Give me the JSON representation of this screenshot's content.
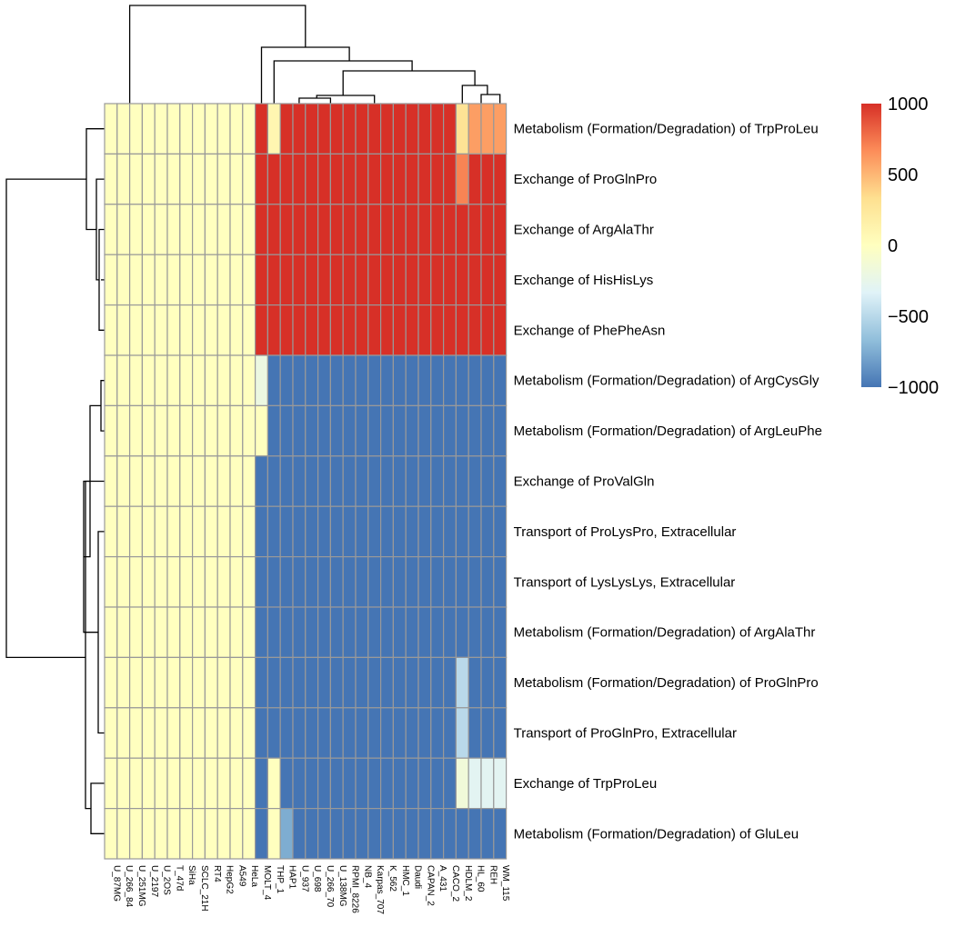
{
  "chart_data": {
    "type": "heatmap",
    "title": "",
    "row_labels": [
      "Metabolism (Formation/Degradation) of TrpProLeu",
      "Exchange of ProGlnPro",
      "Exchange of ArgAlaThr",
      "Exchange of HisHisLys",
      "Exchange of PhePheAsn",
      "Metabolism (Formation/Degradation) of ArgCysGly",
      "Metabolism (Formation/Degradation) of ArgLeuPhe",
      "Exchange of ProValGln",
      "Transport of ProLysPro, Extracellular",
      "Transport of LysLysLys, Extracellular",
      "Metabolism (Formation/Degradation) of ArgAlaThr",
      "Metabolism (Formation/Degradation) of ProGlnPro",
      "Transport of ProGlnPro, Extracellular",
      "Exchange of TrpProLeu",
      "Metabolism (Formation/Degradation) of GluLeu"
    ],
    "col_labels": [
      "U_87MG",
      "U_266_84",
      "U_251MG",
      "U_2197",
      "U_2OS",
      "T_47d",
      "SiHa",
      "SCLC_21H",
      "RT4",
      "HepG2",
      "A549",
      "HeLa",
      "MOLT_4",
      "THP_1",
      "HAP1",
      "U_937",
      "U_698",
      "U_266_70",
      "U_138MG",
      "RPMI_8226",
      "NB_4",
      "Karpas_707",
      "K_562",
      "HMC_1",
      "Daudi",
      "CAPAN_2",
      "A_431",
      "CACO_2",
      "HDLM_2",
      "HL_60",
      "REH",
      "WM_115"
    ],
    "values": [
      [
        0,
        0,
        0,
        0,
        0,
        0,
        0,
        0,
        0,
        0,
        0,
        0,
        1000,
        100,
        1000,
        1000,
        1000,
        1000,
        1000,
        1000,
        1000,
        1000,
        1000,
        1000,
        1000,
        1000,
        1000,
        1000,
        300,
        600,
        600,
        600
      ],
      [
        0,
        0,
        0,
        0,
        0,
        0,
        0,
        0,
        0,
        0,
        0,
        0,
        1000,
        1000,
        1000,
        1000,
        1000,
        1000,
        1000,
        1000,
        1000,
        1000,
        1000,
        1000,
        1000,
        1000,
        1000,
        1000,
        700,
        1000,
        1000,
        1000
      ],
      [
        0,
        0,
        0,
        0,
        0,
        0,
        0,
        0,
        0,
        0,
        0,
        0,
        1000,
        1000,
        1000,
        1000,
        1000,
        1000,
        1000,
        1000,
        1000,
        1000,
        1000,
        1000,
        1000,
        1000,
        1000,
        1000,
        1000,
        1000,
        1000,
        1000
      ],
      [
        0,
        0,
        0,
        0,
        0,
        0,
        0,
        0,
        0,
        0,
        0,
        0,
        1000,
        1000,
        1000,
        1000,
        1000,
        1000,
        1000,
        1000,
        1000,
        1000,
        1000,
        1000,
        1000,
        1000,
        1000,
        1000,
        1000,
        1000,
        1000,
        1000
      ],
      [
        0,
        0,
        0,
        0,
        0,
        0,
        0,
        0,
        0,
        0,
        0,
        0,
        1000,
        1000,
        1000,
        1000,
        1000,
        1000,
        1000,
        1000,
        1000,
        1000,
        1000,
        1000,
        1000,
        1000,
        1000,
        1000,
        1000,
        1000,
        1000,
        1000
      ],
      [
        0,
        0,
        0,
        0,
        0,
        0,
        0,
        0,
        0,
        0,
        0,
        0,
        -200,
        -1000,
        -1000,
        -1000,
        -1000,
        -1000,
        -1000,
        -1000,
        -1000,
        -1000,
        -1000,
        -1000,
        -1000,
        -1000,
        -1000,
        -1000,
        -1000,
        -1000,
        -1000,
        -1000
      ],
      [
        0,
        0,
        0,
        0,
        0,
        0,
        0,
        0,
        0,
        0,
        0,
        0,
        0,
        -1000,
        -1000,
        -1000,
        -1000,
        -1000,
        -1000,
        -1000,
        -1000,
        -1000,
        -1000,
        -1000,
        -1000,
        -1000,
        -1000,
        -1000,
        -1000,
        -1000,
        -1000,
        -1000
      ],
      [
        0,
        0,
        0,
        0,
        0,
        0,
        0,
        0,
        0,
        0,
        0,
        0,
        -1000,
        -1000,
        -1000,
        -1000,
        -1000,
        -1000,
        -1000,
        -1000,
        -1000,
        -1000,
        -1000,
        -1000,
        -1000,
        -1000,
        -1000,
        -1000,
        -1000,
        -1000,
        -1000,
        -1000
      ],
      [
        0,
        0,
        0,
        0,
        0,
        0,
        0,
        0,
        0,
        0,
        0,
        0,
        -1000,
        -1000,
        -1000,
        -1000,
        -1000,
        -1000,
        -1000,
        -1000,
        -1000,
        -1000,
        -1000,
        -1000,
        -1000,
        -1000,
        -1000,
        -1000,
        -1000,
        -1000,
        -1000,
        -1000
      ],
      [
        0,
        0,
        0,
        0,
        0,
        0,
        0,
        0,
        0,
        0,
        0,
        0,
        -1000,
        -1000,
        -1000,
        -1000,
        -1000,
        -1000,
        -1000,
        -1000,
        -1000,
        -1000,
        -1000,
        -1000,
        -1000,
        -1000,
        -1000,
        -1000,
        -1000,
        -1000,
        -1000,
        -1000
      ],
      [
        0,
        0,
        0,
        0,
        0,
        0,
        0,
        0,
        0,
        0,
        0,
        0,
        -1000,
        -1000,
        -1000,
        -1000,
        -1000,
        -1000,
        -1000,
        -1000,
        -1000,
        -1000,
        -1000,
        -1000,
        -1000,
        -1000,
        -1000,
        -1000,
        -1000,
        -1000,
        -1000,
        -1000
      ],
      [
        0,
        0,
        0,
        0,
        0,
        0,
        0,
        0,
        0,
        0,
        0,
        0,
        -1000,
        -1000,
        -1000,
        -1000,
        -1000,
        -1000,
        -1000,
        -1000,
        -1000,
        -1000,
        -1000,
        -1000,
        -1000,
        -1000,
        -1000,
        -1000,
        -500,
        -1000,
        -1000,
        -1000
      ],
      [
        0,
        0,
        0,
        0,
        0,
        0,
        0,
        0,
        0,
        0,
        0,
        0,
        -1000,
        -1000,
        -1000,
        -1000,
        -1000,
        -1000,
        -1000,
        -1000,
        -1000,
        -1000,
        -1000,
        -1000,
        -1000,
        -1000,
        -1000,
        -1000,
        -500,
        -1000,
        -1000,
        -1000
      ],
      [
        0,
        0,
        0,
        0,
        0,
        0,
        0,
        0,
        0,
        0,
        0,
        0,
        -1000,
        0,
        -1000,
        -1000,
        -1000,
        -1000,
        -1000,
        -1000,
        -1000,
        -1000,
        -1000,
        -1000,
        -1000,
        -1000,
        -1000,
        -1000,
        -150,
        -300,
        -300,
        -300
      ],
      [
        0,
        0,
        0,
        0,
        0,
        0,
        0,
        0,
        0,
        0,
        0,
        0,
        -1000,
        0,
        -750,
        -1000,
        -1000,
        -1000,
        -1000,
        -1000,
        -1000,
        -1000,
        -1000,
        -1000,
        -1000,
        -1000,
        -1000,
        -1000,
        -1000,
        -1000,
        -1000,
        -1000
      ]
    ],
    "color_scale": {
      "min": -1000,
      "max": 1000,
      "stops": [
        "#4575b4",
        "#91bfdb",
        "#e0f3f8",
        "#ffffbf",
        "#fee090",
        "#fc8d59",
        "#d73027"
      ]
    },
    "legend_ticks": [
      "1000",
      "500",
      "0",
      "−500",
      "−1000"
    ],
    "legend_tick_values": [
      1000,
      500,
      0,
      -500,
      -1000
    ],
    "legend_position": "right",
    "grid_color": "#999999",
    "dendrograms": {
      "row": "left",
      "column": "top"
    }
  }
}
